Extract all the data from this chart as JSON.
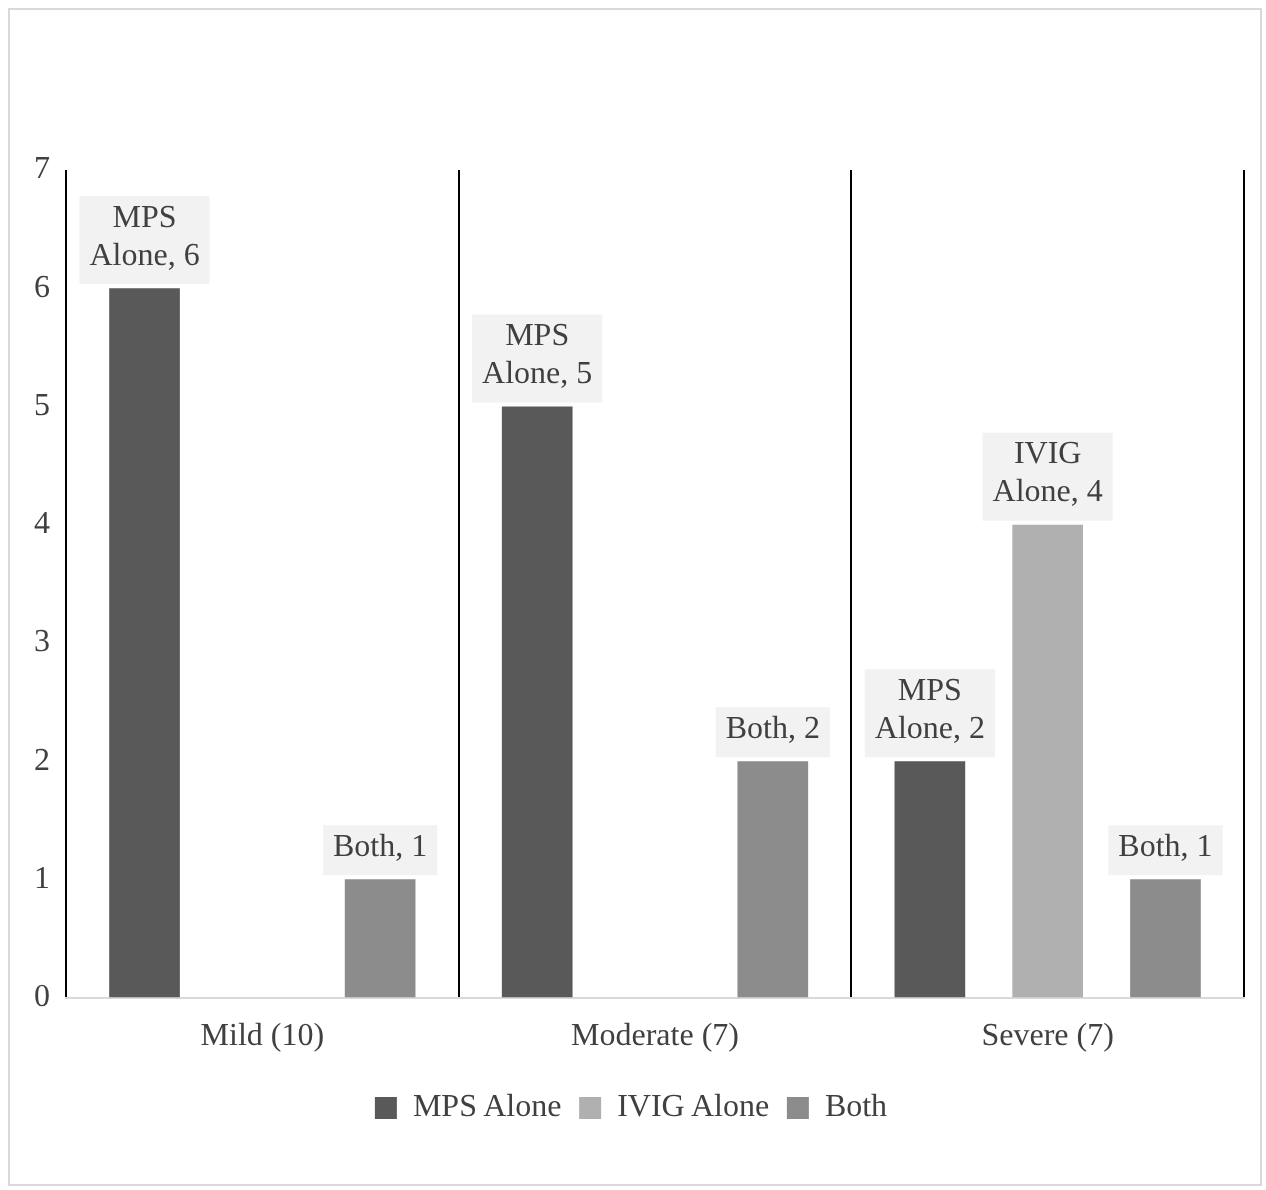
{
  "chart_data": {
    "type": "bar",
    "categories": [
      "Mild (10)",
      "Moderate (7)",
      "Severe (7)"
    ],
    "series": [
      {
        "name": "MPS Alone",
        "color": "#595959",
        "values": [
          6,
          5,
          2
        ],
        "value_labels": [
          "MPS Alone, 6",
          "MPS Alone, 5",
          "MPS Alone, 2"
        ]
      },
      {
        "name": "IVIG Alone",
        "color": "#b0b0b0",
        "values": [
          0,
          0,
          4
        ],
        "value_labels": [
          null,
          null,
          "IVIG Alone, 4"
        ]
      },
      {
        "name": "Both",
        "color": "#8c8c8c",
        "values": [
          1,
          2,
          1
        ],
        "value_labels": [
          "Both, 1",
          "Both, 2",
          "Both, 1"
        ]
      }
    ],
    "ylim": [
      0,
      7
    ],
    "yticks": [
      0,
      1,
      2,
      3,
      4,
      5,
      6,
      7
    ],
    "grid": "x",
    "legend": "bottom"
  }
}
